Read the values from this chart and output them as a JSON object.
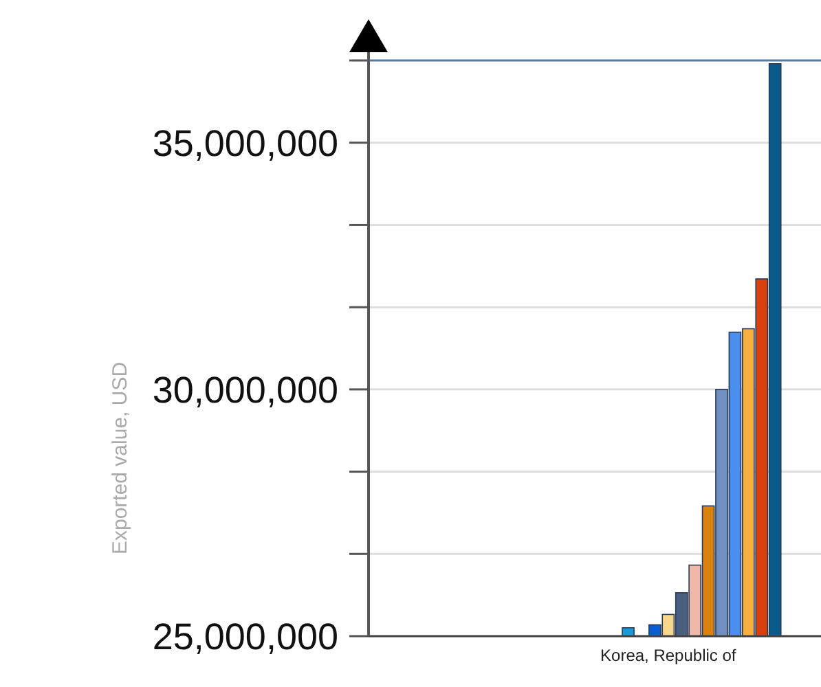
{
  "chart_data": {
    "type": "bar",
    "ylabel": "Exported value, USD",
    "categories": [
      null,
      null,
      null,
      null,
      null,
      null,
      null,
      null,
      null,
      null,
      null,
      null,
      null,
      null,
      null,
      null,
      null,
      null,
      null,
      null,
      null,
      null,
      "Korea, Republic of",
      null,
      null,
      null,
      null,
      null,
      null,
      null,
      null,
      null,
      null,
      null
    ],
    "values": [
      null,
      null,
      null,
      null,
      null,
      null,
      null,
      null,
      null,
      null,
      null,
      null,
      null,
      null,
      null,
      null,
      null,
      null,
      null,
      25170000,
      null,
      25230000,
      25440000,
      25880000,
      26440000,
      27640000,
      30000000,
      31160000,
      31230000,
      32240000,
      36600000,
      null,
      null,
      null
    ],
    "colors": [
      null,
      null,
      null,
      null,
      null,
      null,
      null,
      null,
      null,
      null,
      null,
      null,
      null,
      null,
      null,
      null,
      null,
      null,
      null,
      "#1a9ad6",
      null,
      "#0a5fd6",
      "#f5d68a",
      "#4a5f80",
      "#f0b8a8",
      "#d9820f",
      "#7090c0",
      "#4a8ef0",
      "#f5b040",
      "#d94010",
      "#0a5a8a",
      null,
      null,
      null
    ],
    "ylim": [
      25000000,
      36666667
    ],
    "yticks": [
      {
        "value": 25000000,
        "label": "25,000,000"
      },
      {
        "value": 26666667,
        "label": null
      },
      {
        "value": 28333333,
        "label": null
      },
      {
        "value": 30000000,
        "label": "30,000,000"
      },
      {
        "value": 31666667,
        "label": null
      },
      {
        "value": 33333333,
        "label": null
      },
      {
        "value": 35000000,
        "label": "35,000,000"
      },
      {
        "value": 36666667,
        "label": null
      }
    ],
    "grid": "y"
  }
}
